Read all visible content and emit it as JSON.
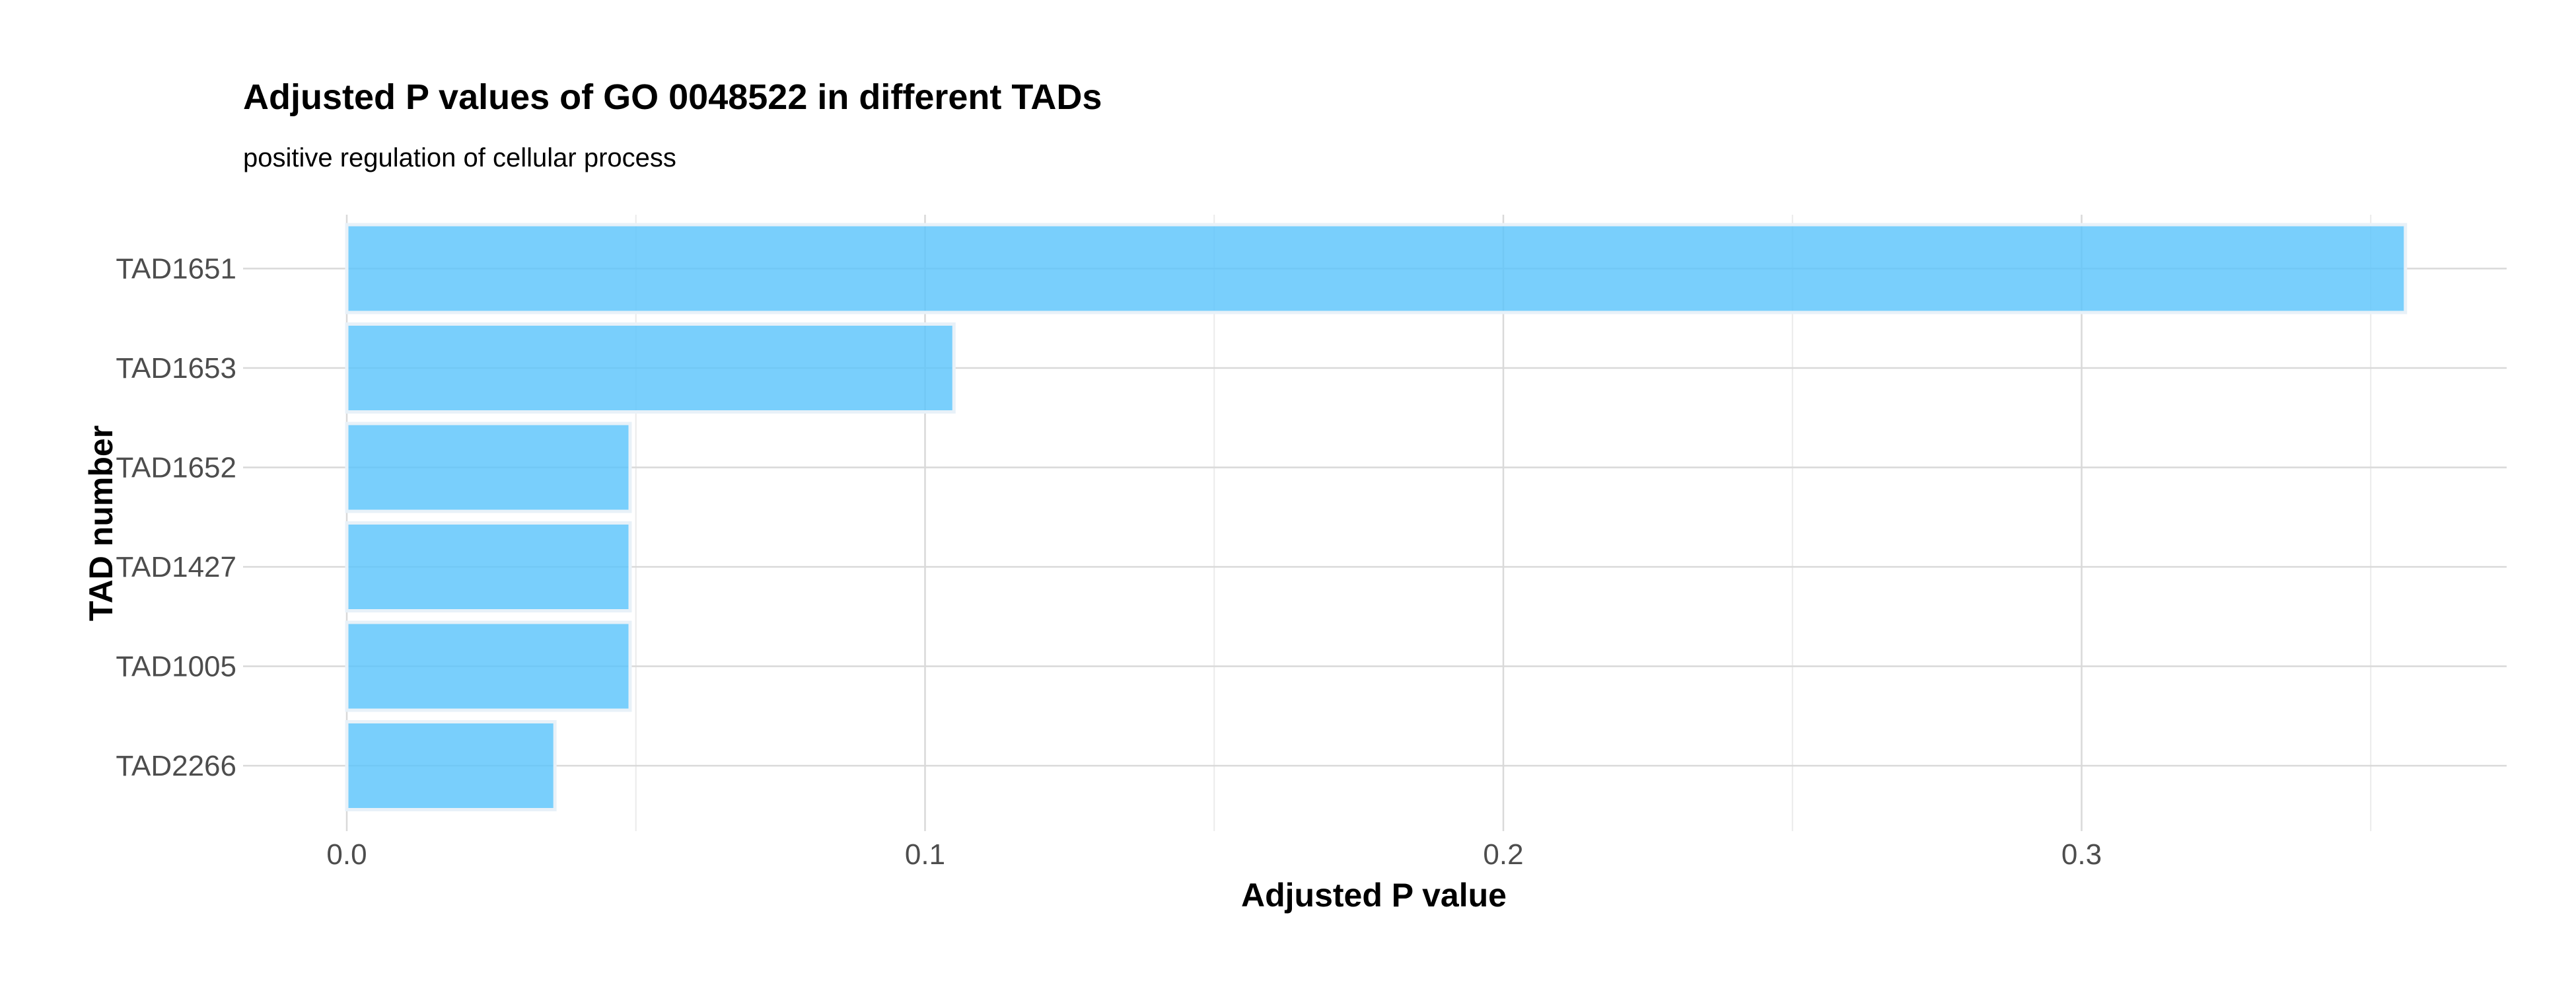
{
  "chart_data": {
    "type": "bar",
    "orientation": "horizontal",
    "title": "Adjusted P values of GO 0048522 in different TADs",
    "subtitle": "positive regulation of cellular process",
    "xlabel": "Adjusted P value",
    "ylabel": "TAD number",
    "categories": [
      "TAD1651",
      "TAD1653",
      "TAD1652",
      "TAD1427",
      "TAD1005",
      "TAD2266"
    ],
    "values": [
      0.356,
      0.105,
      0.049,
      0.049,
      0.049,
      0.036
    ],
    "xlim": [
      0,
      0.37
    ],
    "xticks": [
      0.0,
      0.1,
      0.2,
      0.3
    ],
    "xtick_labels": [
      "0.0",
      "0.1",
      "0.2",
      "0.3"
    ],
    "grid": true,
    "legend": "none",
    "bar_color": "#5bc4fb",
    "bar_border_color": "#e8f1f8"
  }
}
